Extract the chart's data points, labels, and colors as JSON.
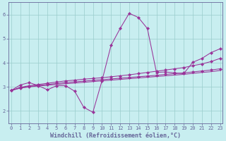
{
  "xlabel": "Windchill (Refroidissement éolien,°C)",
  "bg_color": "#c8eef0",
  "line_color": "#993399",
  "grid_color": "#99cccc",
  "axis_color": "#666699",
  "x_ticks": [
    0,
    1,
    2,
    3,
    4,
    5,
    6,
    7,
    8,
    9,
    10,
    11,
    12,
    13,
    14,
    15,
    16,
    17,
    18,
    19,
    20,
    21,
    22,
    23
  ],
  "y_ticks": [
    2,
    3,
    4,
    5,
    6
  ],
  "ylim": [
    1.5,
    6.5
  ],
  "xlim": [
    -0.3,
    23.3
  ],
  "line1_y": [
    2.85,
    3.08,
    3.18,
    3.05,
    2.88,
    3.05,
    3.05,
    2.82,
    2.15,
    1.95,
    3.25,
    4.72,
    5.42,
    6.05,
    5.88,
    5.42,
    3.6,
    3.62,
    3.58,
    3.55,
    4.02,
    4.18,
    4.42,
    4.58
  ],
  "line2_y": [
    2.85,
    2.98,
    3.05,
    3.1,
    3.15,
    3.2,
    3.25,
    3.28,
    3.32,
    3.35,
    3.38,
    3.42,
    3.46,
    3.5,
    3.55,
    3.6,
    3.65,
    3.7,
    3.75,
    3.8,
    3.88,
    3.95,
    4.05,
    4.18
  ],
  "line3_y": [
    2.85,
    2.96,
    3.02,
    3.06,
    3.1,
    3.14,
    3.18,
    3.21,
    3.24,
    3.27,
    3.3,
    3.33,
    3.36,
    3.39,
    3.42,
    3.45,
    3.48,
    3.52,
    3.55,
    3.58,
    3.62,
    3.66,
    3.7,
    3.75
  ],
  "line4_y": [
    2.85,
    2.95,
    3.0,
    3.04,
    3.07,
    3.1,
    3.13,
    3.16,
    3.19,
    3.22,
    3.25,
    3.28,
    3.31,
    3.34,
    3.37,
    3.4,
    3.43,
    3.46,
    3.49,
    3.52,
    3.56,
    3.6,
    3.63,
    3.68
  ],
  "tick_fontsize": 5.0,
  "xlabel_fontsize": 6.0,
  "markersize": 2.2,
  "linewidth": 0.75
}
